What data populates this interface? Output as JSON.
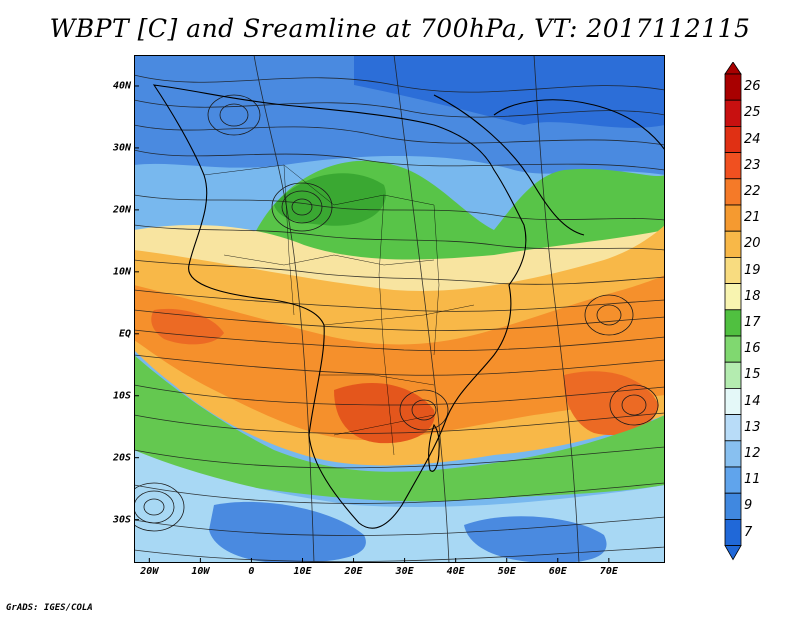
{
  "title": "WBPT [C] and Sreamline at 700hPa, VT: 2017112115",
  "credit": "GrADS: IGES/COLA",
  "map": {
    "lon_range": [
      -23,
      81
    ],
    "lat_range": [
      -37,
      45
    ],
    "x_ticks": [
      {
        "lon": -20,
        "label": "20W"
      },
      {
        "lon": -10,
        "label": "10W"
      },
      {
        "lon": 0,
        "label": "0"
      },
      {
        "lon": 10,
        "label": "10E"
      },
      {
        "lon": 20,
        "label": "20E"
      },
      {
        "lon": 30,
        "label": "30E"
      },
      {
        "lon": 40,
        "label": "40E"
      },
      {
        "lon": 50,
        "label": "50E"
      },
      {
        "lon": 60,
        "label": "60E"
      },
      {
        "lon": 70,
        "label": "70E"
      }
    ],
    "y_ticks": [
      {
        "lat": 40,
        "label": "40N"
      },
      {
        "lat": 30,
        "label": "30N"
      },
      {
        "lat": 20,
        "label": "20N"
      },
      {
        "lat": 10,
        "label": "10N"
      },
      {
        "lat": 0,
        "label": "EQ"
      },
      {
        "lat": -10,
        "label": "10S"
      },
      {
        "lat": -20,
        "label": "20S"
      },
      {
        "lat": -30,
        "label": "30S"
      }
    ]
  },
  "colorbar": {
    "levels": [
      "26",
      "25",
      "24",
      "23",
      "22",
      "21",
      "20",
      "19",
      "18",
      "17",
      "16",
      "15",
      "14",
      "13",
      "12",
      "11",
      "9",
      "7"
    ],
    "colors": [
      "#a80000",
      "#c81010",
      "#e03014",
      "#f05020",
      "#f57a28",
      "#f59a30",
      "#f8b848",
      "#f8dc80",
      "#f8f4b0",
      "#50c040",
      "#80d870",
      "#b4ecb0",
      "#e4f8f8",
      "#b8dcf8",
      "#88c0f0",
      "#60a4ec",
      "#4088e0",
      "#2068d8"
    ]
  },
  "legend_colors": {
    "cold": "#3a7ad8",
    "cool": "#8cc0f0",
    "moist": "#50c040",
    "warm": "#f8b848",
    "hot": "#f07a20"
  }
}
